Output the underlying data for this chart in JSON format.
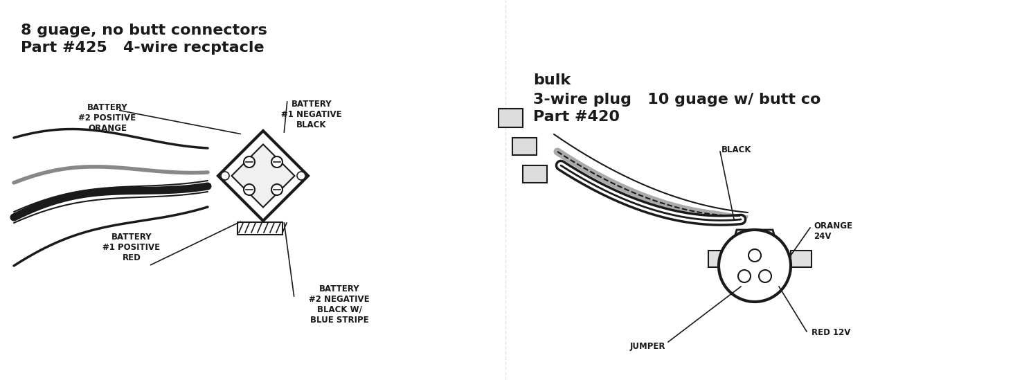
{
  "bg_color": "#ffffff",
  "line_color": "#1a1a1a",
  "title1_line1": "Part #425   4-wire recptacle",
  "title1_line2": "8 guage, no butt connectors",
  "title2_line1": "Part #420",
  "title2_line2": "3-wire plug   10 guage w/ butt co",
  "title2_line3": "bulk",
  "label_bat1pos": "BATTERY\n#1 POSITIVE\nRED",
  "label_bat2neg": "BATTERY\n#2 NEGATIVE\nBLACK W/\nBLUE STRIPE",
  "label_bat2pos": "BATTERY\n#2 POSITIVE\nORANGE",
  "label_bat1neg": "BATTERY\n#1 NEGATIVE\nBLACK",
  "label_jumper": "JUMPER",
  "label_red12v": "RED 12V",
  "label_orange24v": "ORANGE\n24V",
  "label_black": "BLACK",
  "font_label": 8.5,
  "font_title": 16
}
